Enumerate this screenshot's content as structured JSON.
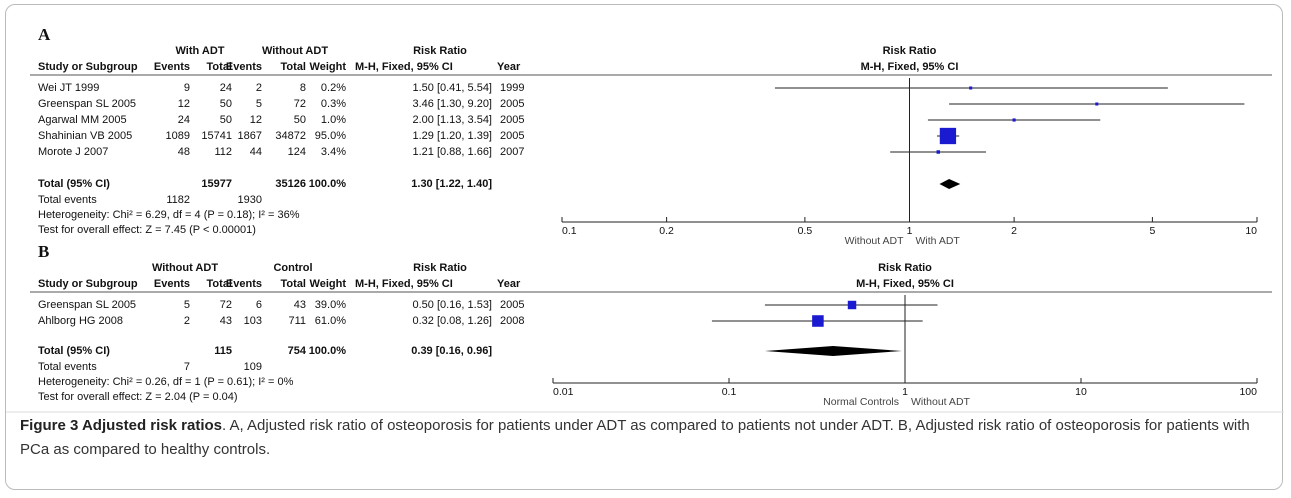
{
  "figure": {
    "panels": [
      {
        "label": "A",
        "group_headers": [
          "With ADT",
          "Without ADT",
          "Risk Ratio"
        ],
        "column_headers": [
          "Study or Subgroup",
          "Events",
          "Total",
          "Events",
          "Total",
          "Weight",
          "M-H, Fixed, 95% CI",
          "Year"
        ],
        "plot_title": "Risk Ratio",
        "plot_subtitle": "M-H, Fixed, 95% CI",
        "studies": [
          {
            "name": "Wei JT 1999",
            "events1": 9,
            "total1": 24,
            "events2": 2,
            "total2": 8,
            "weight": 0.2,
            "weight_label": "0.2%",
            "ci_label": "1.50 [0.41, 5.54]",
            "year": 1999,
            "rr": 1.5,
            "lower": 0.41,
            "upper": 5.54
          },
          {
            "name": "Greenspan SL 2005",
            "events1": 12,
            "total1": 50,
            "events2": 5,
            "total2": 72,
            "weight": 0.3,
            "weight_label": "0.3%",
            "ci_label": "3.46 [1.30, 9.20]",
            "year": 2005,
            "rr": 3.46,
            "lower": 1.3,
            "upper": 9.2
          },
          {
            "name": "Agarwal MM 2005",
            "events1": 24,
            "total1": 50,
            "events2": 12,
            "total2": 50,
            "weight": 1.0,
            "weight_label": "1.0%",
            "ci_label": "2.00 [1.13, 3.54]",
            "year": 2005,
            "rr": 2.0,
            "lower": 1.13,
            "upper": 3.54
          },
          {
            "name": "Shahinian VB 2005",
            "events1": 1089,
            "total1": 15741,
            "events2": 1867,
            "total2": 34872,
            "weight": 95.0,
            "weight_label": "95.0%",
            "ci_label": "1.29 [1.20, 1.39]",
            "year": 2005,
            "rr": 1.29,
            "lower": 1.2,
            "upper": 1.39
          },
          {
            "name": "Morote J 2007",
            "events1": 48,
            "total1": 112,
            "events2": 44,
            "total2": 124,
            "weight": 3.4,
            "weight_label": "3.4%",
            "ci_label": "1.21 [0.88, 1.66]",
            "year": 2007,
            "rr": 1.21,
            "lower": 0.88,
            "upper": 1.66
          }
        ],
        "total": {
          "name": "Total (95% CI)",
          "total1": 15977,
          "total2": 35126,
          "weight_label": "100.0%",
          "ci_label": "1.30 [1.22, 1.40]",
          "rr": 1.3,
          "lower": 1.22,
          "upper": 1.4
        },
        "total_events": {
          "name": "Total events",
          "events1": 1182,
          "events2": 1930
        },
        "heterogeneity": "Heterogeneity: Chi² = 6.29, df = 4 (P = 0.18); I² = 36%",
        "overall_effect": "Test for overall effect: Z = 7.45 (P < 0.00001)",
        "log_scale": true,
        "xlim": [
          0.1,
          10
        ],
        "xticks": [
          0.1,
          0.2,
          0.5,
          1,
          2,
          5,
          10
        ],
        "favours": [
          "Without ADT",
          "With ADT"
        ]
      },
      {
        "label": "B",
        "group_headers": [
          "Without ADT",
          "Control",
          "Risk Ratio"
        ],
        "column_headers": [
          "Study or Subgroup",
          "Events",
          "Total",
          "Events",
          "Total",
          "Weight",
          "M-H, Fixed, 95% CI",
          "Year"
        ],
        "plot_title": "Risk Ratio",
        "plot_subtitle": "M-H, Fixed, 95% CI",
        "studies": [
          {
            "name": "Greenspan SL 2005",
            "events1": 5,
            "total1": 72,
            "events2": 6,
            "total2": 43,
            "weight": 39.0,
            "weight_label": "39.0%",
            "ci_label": "0.50 [0.16, 1.53]",
            "year": 2005,
            "rr": 0.5,
            "lower": 0.16,
            "upper": 1.53
          },
          {
            "name": "Ahlborg HG 2008",
            "events1": 2,
            "total1": 43,
            "events2": 103,
            "total2": 711,
            "weight": 61.0,
            "weight_label": "61.0%",
            "ci_label": "0.32 [0.08, 1.26]",
            "year": 2008,
            "rr": 0.32,
            "lower": 0.08,
            "upper": 1.26
          }
        ],
        "total": {
          "name": "Total (95% CI)",
          "total1": 115,
          "total2": 754,
          "weight_label": "100.0%",
          "ci_label": "0.39 [0.16, 0.96]",
          "rr": 0.39,
          "lower": 0.16,
          "upper": 0.96
        },
        "total_events": {
          "name": "Total events",
          "events1": 7,
          "events2": 109
        },
        "heterogeneity": "Heterogeneity: Chi² = 0.26, df = 1 (P = 0.61); I² = 0%",
        "overall_effect": "Test for overall effect: Z = 2.04 (P = 0.04)",
        "log_scale": true,
        "xlim": [
          0.01,
          100
        ],
        "xticks": [
          0.01,
          0.1,
          1,
          10,
          100
        ],
        "favours": [
          "Normal Controls",
          "Without ADT"
        ]
      }
    ],
    "caption": {
      "title": "Figure 3 Adjusted risk ratios",
      "text": ". A, Adjusted risk ratio of osteoporosis for patients under ADT as compared to patients not under ADT. B, Adjusted risk ratio of osteoporosis for patients with PCa as compared to healthy controls."
    }
  }
}
